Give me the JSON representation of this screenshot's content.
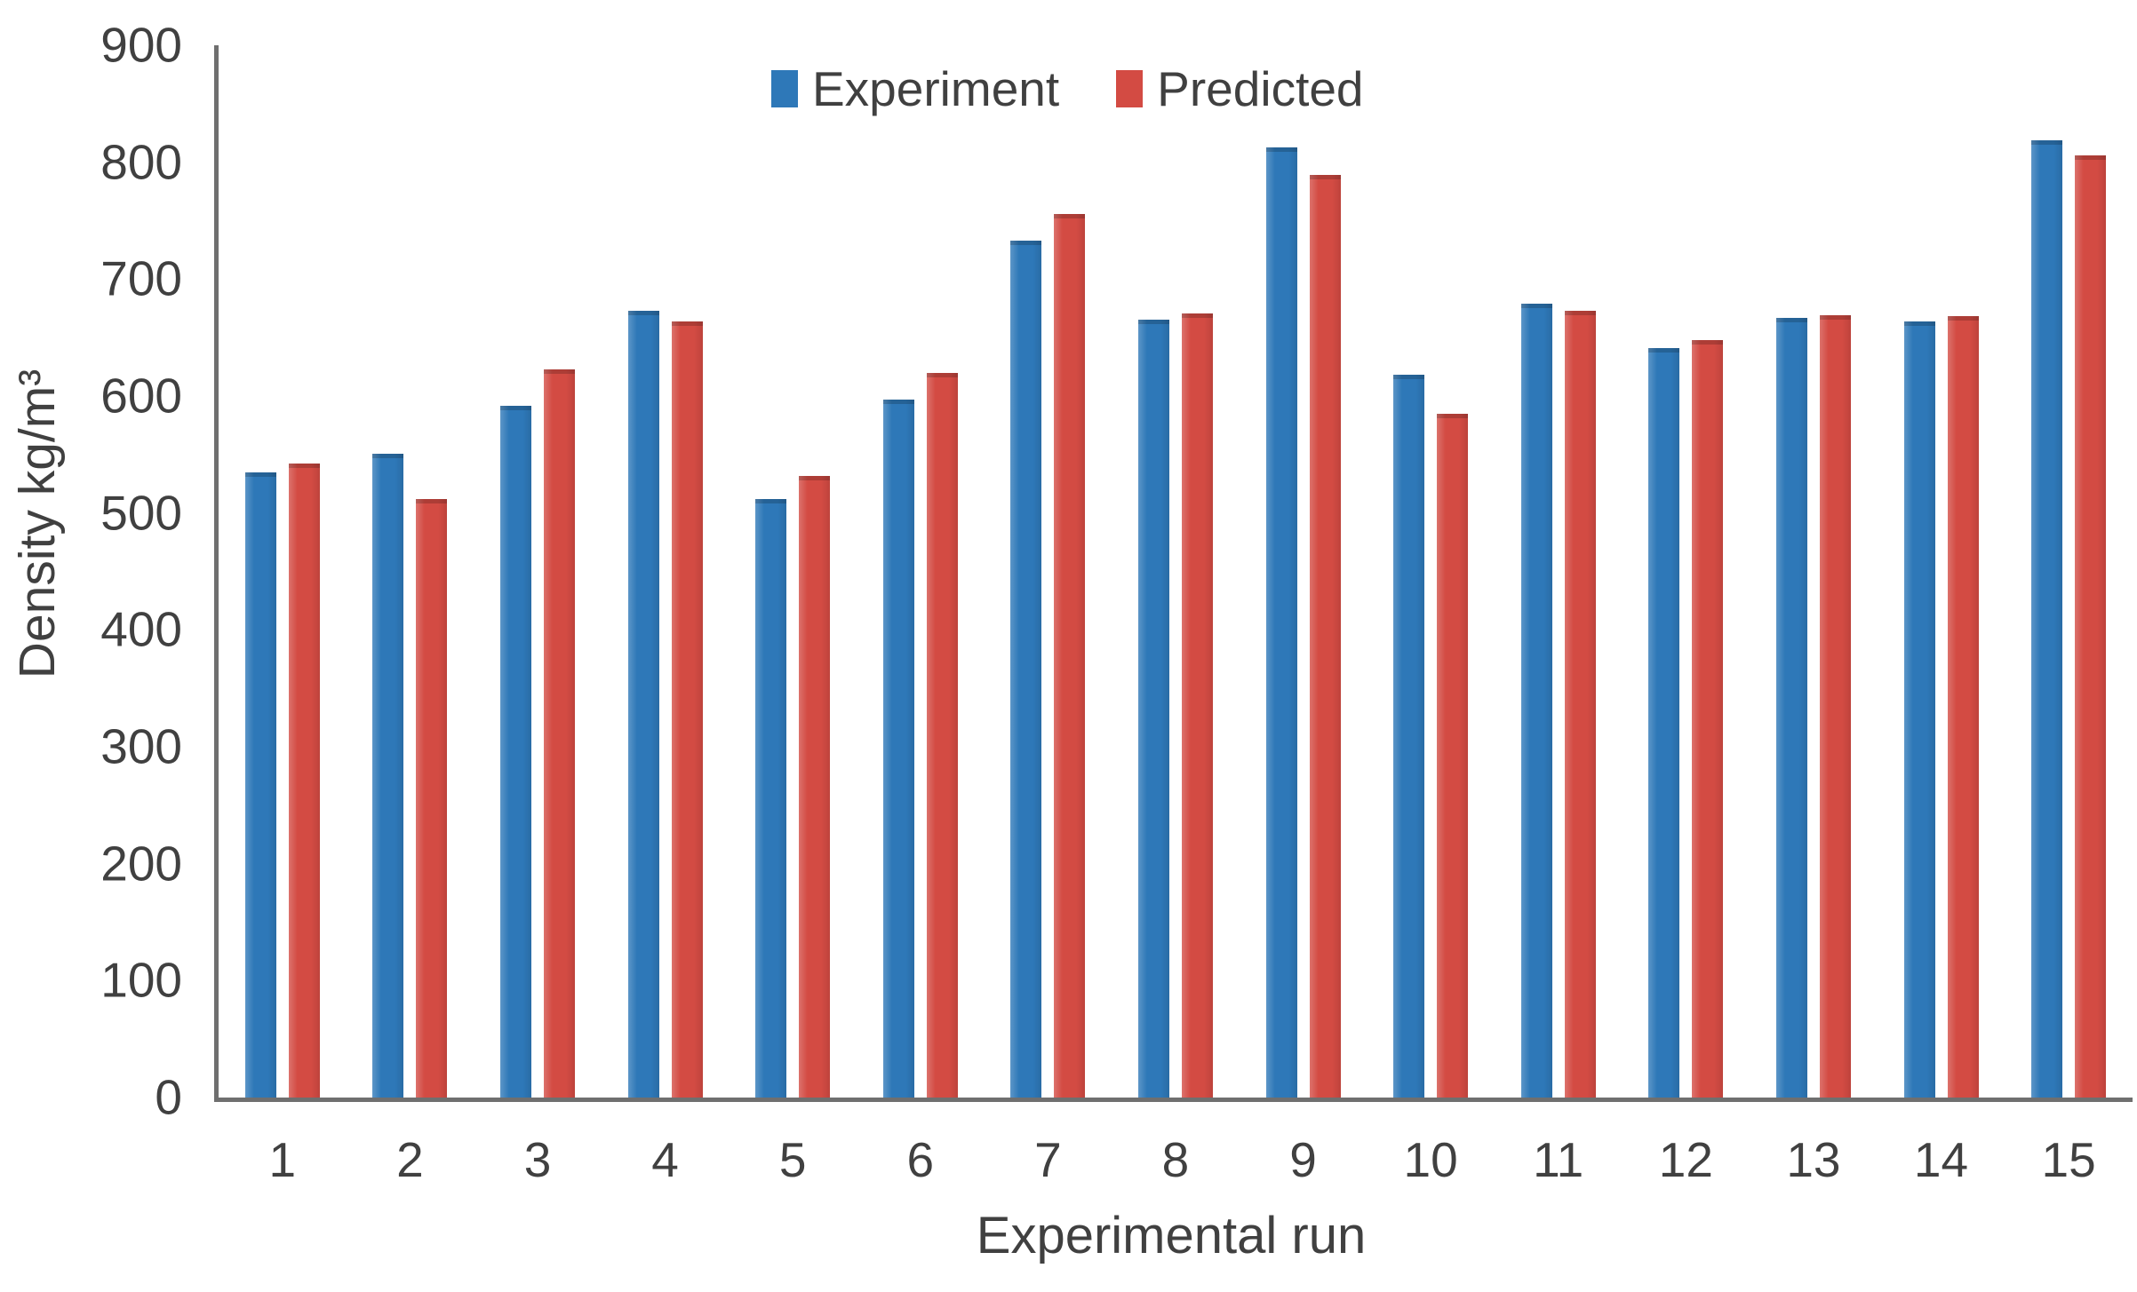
{
  "chart_data": {
    "type": "bar",
    "title": "",
    "categories": [
      "1",
      "2",
      "3",
      "4",
      "5",
      "6",
      "7",
      "8",
      "9",
      "10",
      "11",
      "12",
      "13",
      "14",
      "15"
    ],
    "series": [
      {
        "name": "Experiment",
        "color": "#2E78B8",
        "values": [
          535,
          551,
          592,
          673,
          512,
          597,
          733,
          665,
          813,
          618,
          679,
          641,
          667,
          664,
          819
        ]
      },
      {
        "name": "Predicted",
        "color": "#D34B43",
        "values": [
          542,
          512,
          623,
          664,
          532,
          620,
          756,
          671,
          789,
          585,
          673,
          648,
          669,
          668,
          806
        ]
      }
    ],
    "xlabel": "Experimental run",
    "ylabel": "Density kg/m³",
    "ylim": [
      0,
      900
    ],
    "yticks": [
      0,
      100,
      200,
      300,
      400,
      500,
      600,
      700,
      800,
      900
    ],
    "grid": false,
    "legend_position": "top-center",
    "axis_line_color": "#6F6F6F",
    "text_color": "#404040",
    "background_color": "#FFFFFF"
  }
}
